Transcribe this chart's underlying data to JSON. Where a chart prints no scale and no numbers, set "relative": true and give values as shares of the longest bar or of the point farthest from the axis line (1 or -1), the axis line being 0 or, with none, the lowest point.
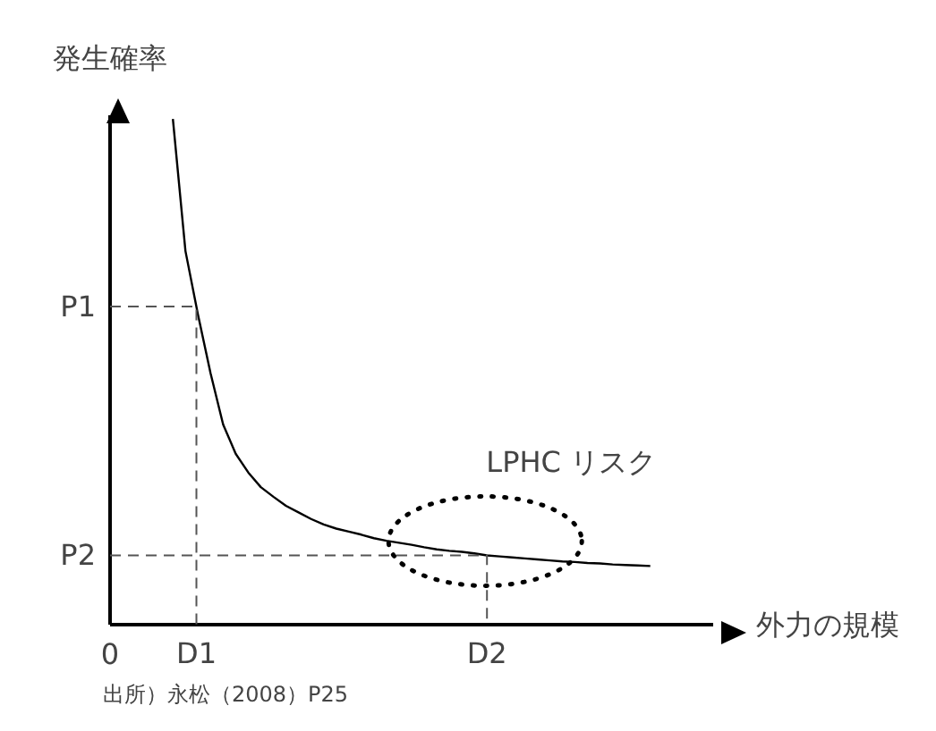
{
  "chart_data": {
    "type": "line",
    "relative": true,
    "xlabel": "外力の規模",
    "ylabel": "発生確率",
    "categories": [
      null,
      null,
      null,
      null,
      null,
      null,
      null,
      null,
      null,
      null,
      null,
      null,
      null,
      null,
      null,
      null,
      null,
      null,
      null,
      null,
      null,
      null,
      null,
      null,
      null,
      null,
      null,
      null,
      null,
      null,
      null,
      null,
      null,
      null,
      null,
      null,
      null,
      null,
      null,
      null,
      null,
      null,
      null,
      null
    ],
    "series": [
      {
        "color": "#000000",
        "values": [
          null,
          null,
          null,
          null,
          null,
          1.0,
          0.739,
          0.613,
          0.497,
          0.396,
          0.338,
          0.301,
          0.272,
          0.253,
          0.235,
          0.222,
          0.209,
          0.198,
          0.19,
          0.184,
          0.178,
          0.171,
          0.166,
          0.162,
          0.158,
          0.153,
          0.149,
          0.146,
          0.144,
          0.141,
          0.137,
          0.135,
          0.133,
          0.131,
          0.129,
          0.127,
          0.125,
          0.124,
          0.122,
          0.121,
          0.119,
          0.118,
          0.117,
          0.116
        ]
      }
    ],
    "ref_lines": [
      {
        "axis": "y",
        "value": 0.629,
        "label": "P1",
        "color": "#555555",
        "line_style": "dashed"
      },
      {
        "axis": "y",
        "value": 0.137,
        "label": "P2",
        "color": "#555555",
        "line_style": "dashed"
      }
    ],
    "annotations": [
      "0",
      "D1",
      "D2",
      "LPHC リスク",
      "出所）永松（2008）P25"
    ]
  }
}
